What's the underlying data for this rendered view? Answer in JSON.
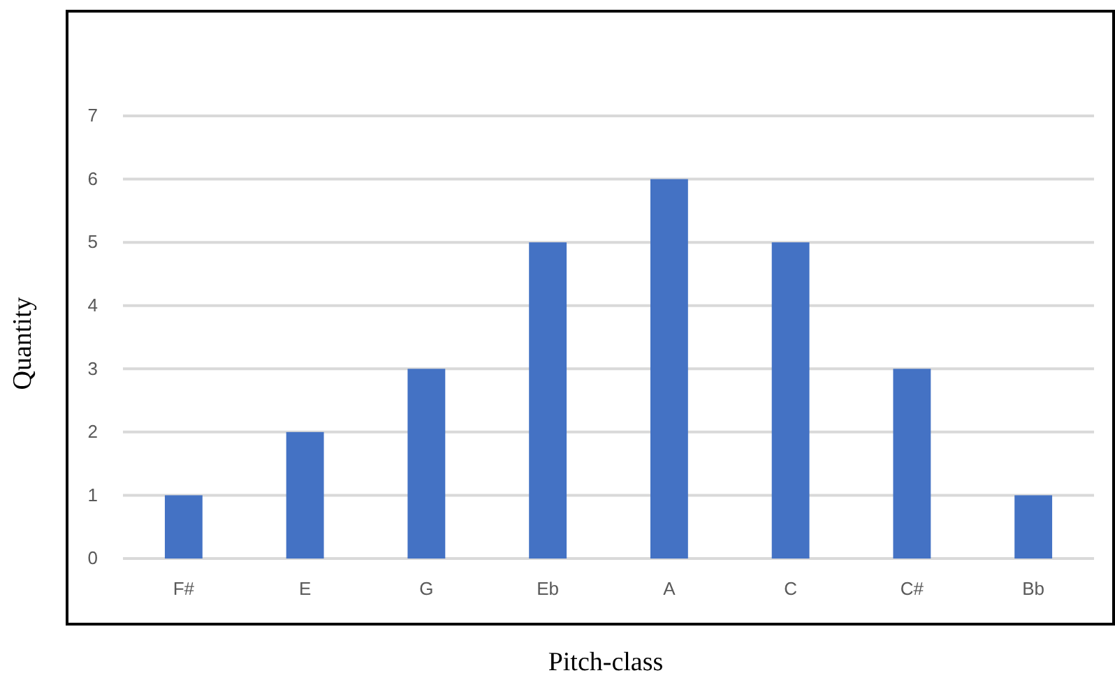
{
  "chart_data": {
    "type": "bar",
    "xlabel": "Pitch-class",
    "ylabel": "Quantity",
    "categories": [
      "F#",
      "E",
      "G",
      "Eb",
      "A",
      "C",
      "C#",
      "Bb"
    ],
    "values": [
      1,
      2,
      3,
      5,
      6,
      5,
      3,
      1
    ],
    "color": "#4472c4",
    "ylim": [
      0,
      7
    ],
    "yticks": [
      0,
      1,
      2,
      3,
      4,
      5,
      6,
      7
    ],
    "grid": "y"
  }
}
